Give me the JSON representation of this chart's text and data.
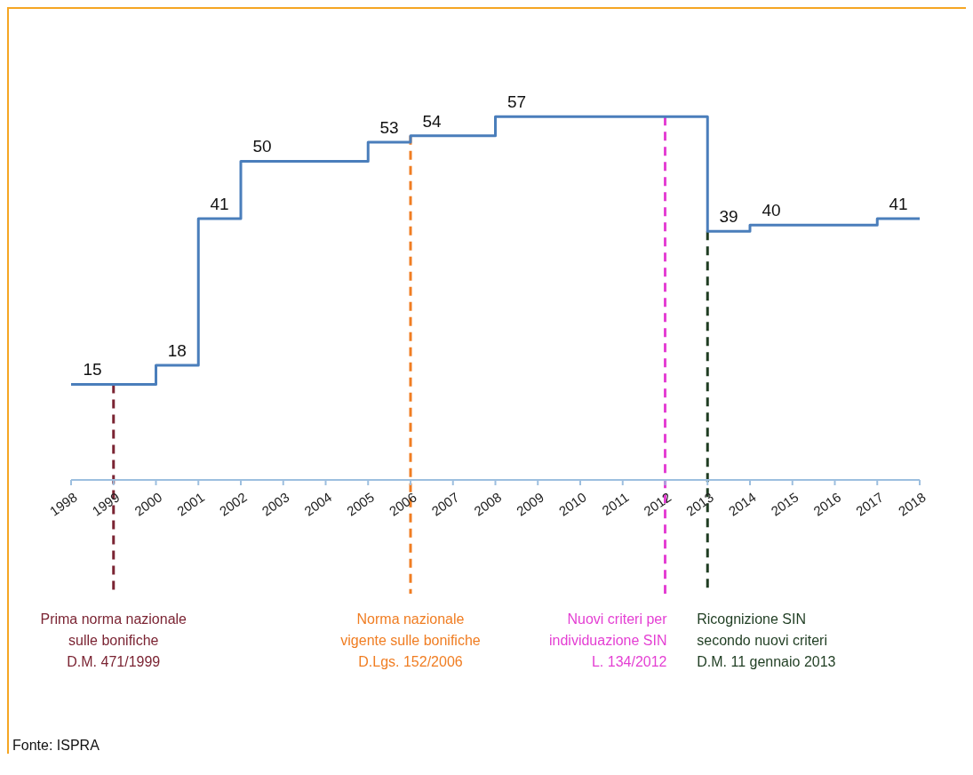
{
  "chart_data": {
    "type": "step",
    "x": [
      1998,
      2000,
      2001,
      2002,
      2005,
      2006,
      2008,
      2013,
      2014,
      2017,
      2018
    ],
    "values": [
      15,
      18,
      41,
      50,
      53,
      54,
      57,
      39,
      40,
      41,
      41
    ],
    "value_labels": [
      "15",
      "18",
      "41",
      "50",
      "53",
      "54",
      "57",
      "39",
      "40",
      "41",
      null
    ],
    "color": "#4a7ebb",
    "xlim": [
      1998,
      2018
    ],
    "xticks": [
      1998,
      1999,
      2000,
      2001,
      2002,
      2003,
      2004,
      2005,
      2006,
      2007,
      2008,
      2009,
      2010,
      2011,
      2012,
      2013,
      2014,
      2015,
      2016,
      2017,
      2018
    ],
    "grid": false,
    "legend": false,
    "marker": "none",
    "line_style": "solid",
    "ref_lines": [
      {
        "axis": "x",
        "value": 1999,
        "label": "Prima norma nazionale\nsulle bonifiche\nD.M. 471/1999",
        "color": "#7b2433",
        "line_style": "dashed"
      },
      {
        "axis": "x",
        "value": 2006,
        "label": "Norma nazionale\nvigente sulle bonifiche\nD.Lgs. 152/2006",
        "color": "#f07d22",
        "line_style": "dashed"
      },
      {
        "axis": "x",
        "value": 2012,
        "label": "Nuovi criteri per\nindividuazione SIN\nL. 134/2012",
        "color": "#e43fd3",
        "line_style": "dashed"
      },
      {
        "axis": "x",
        "value": 2013,
        "label": "Ricognizione SIN\nsecondo nuovi criteri\nD.M. 11 gennaio 2013",
        "color": "#1f3d22",
        "line_style": "dashed"
      }
    ],
    "annotations": [
      "Fonte: ISPRA"
    ]
  }
}
